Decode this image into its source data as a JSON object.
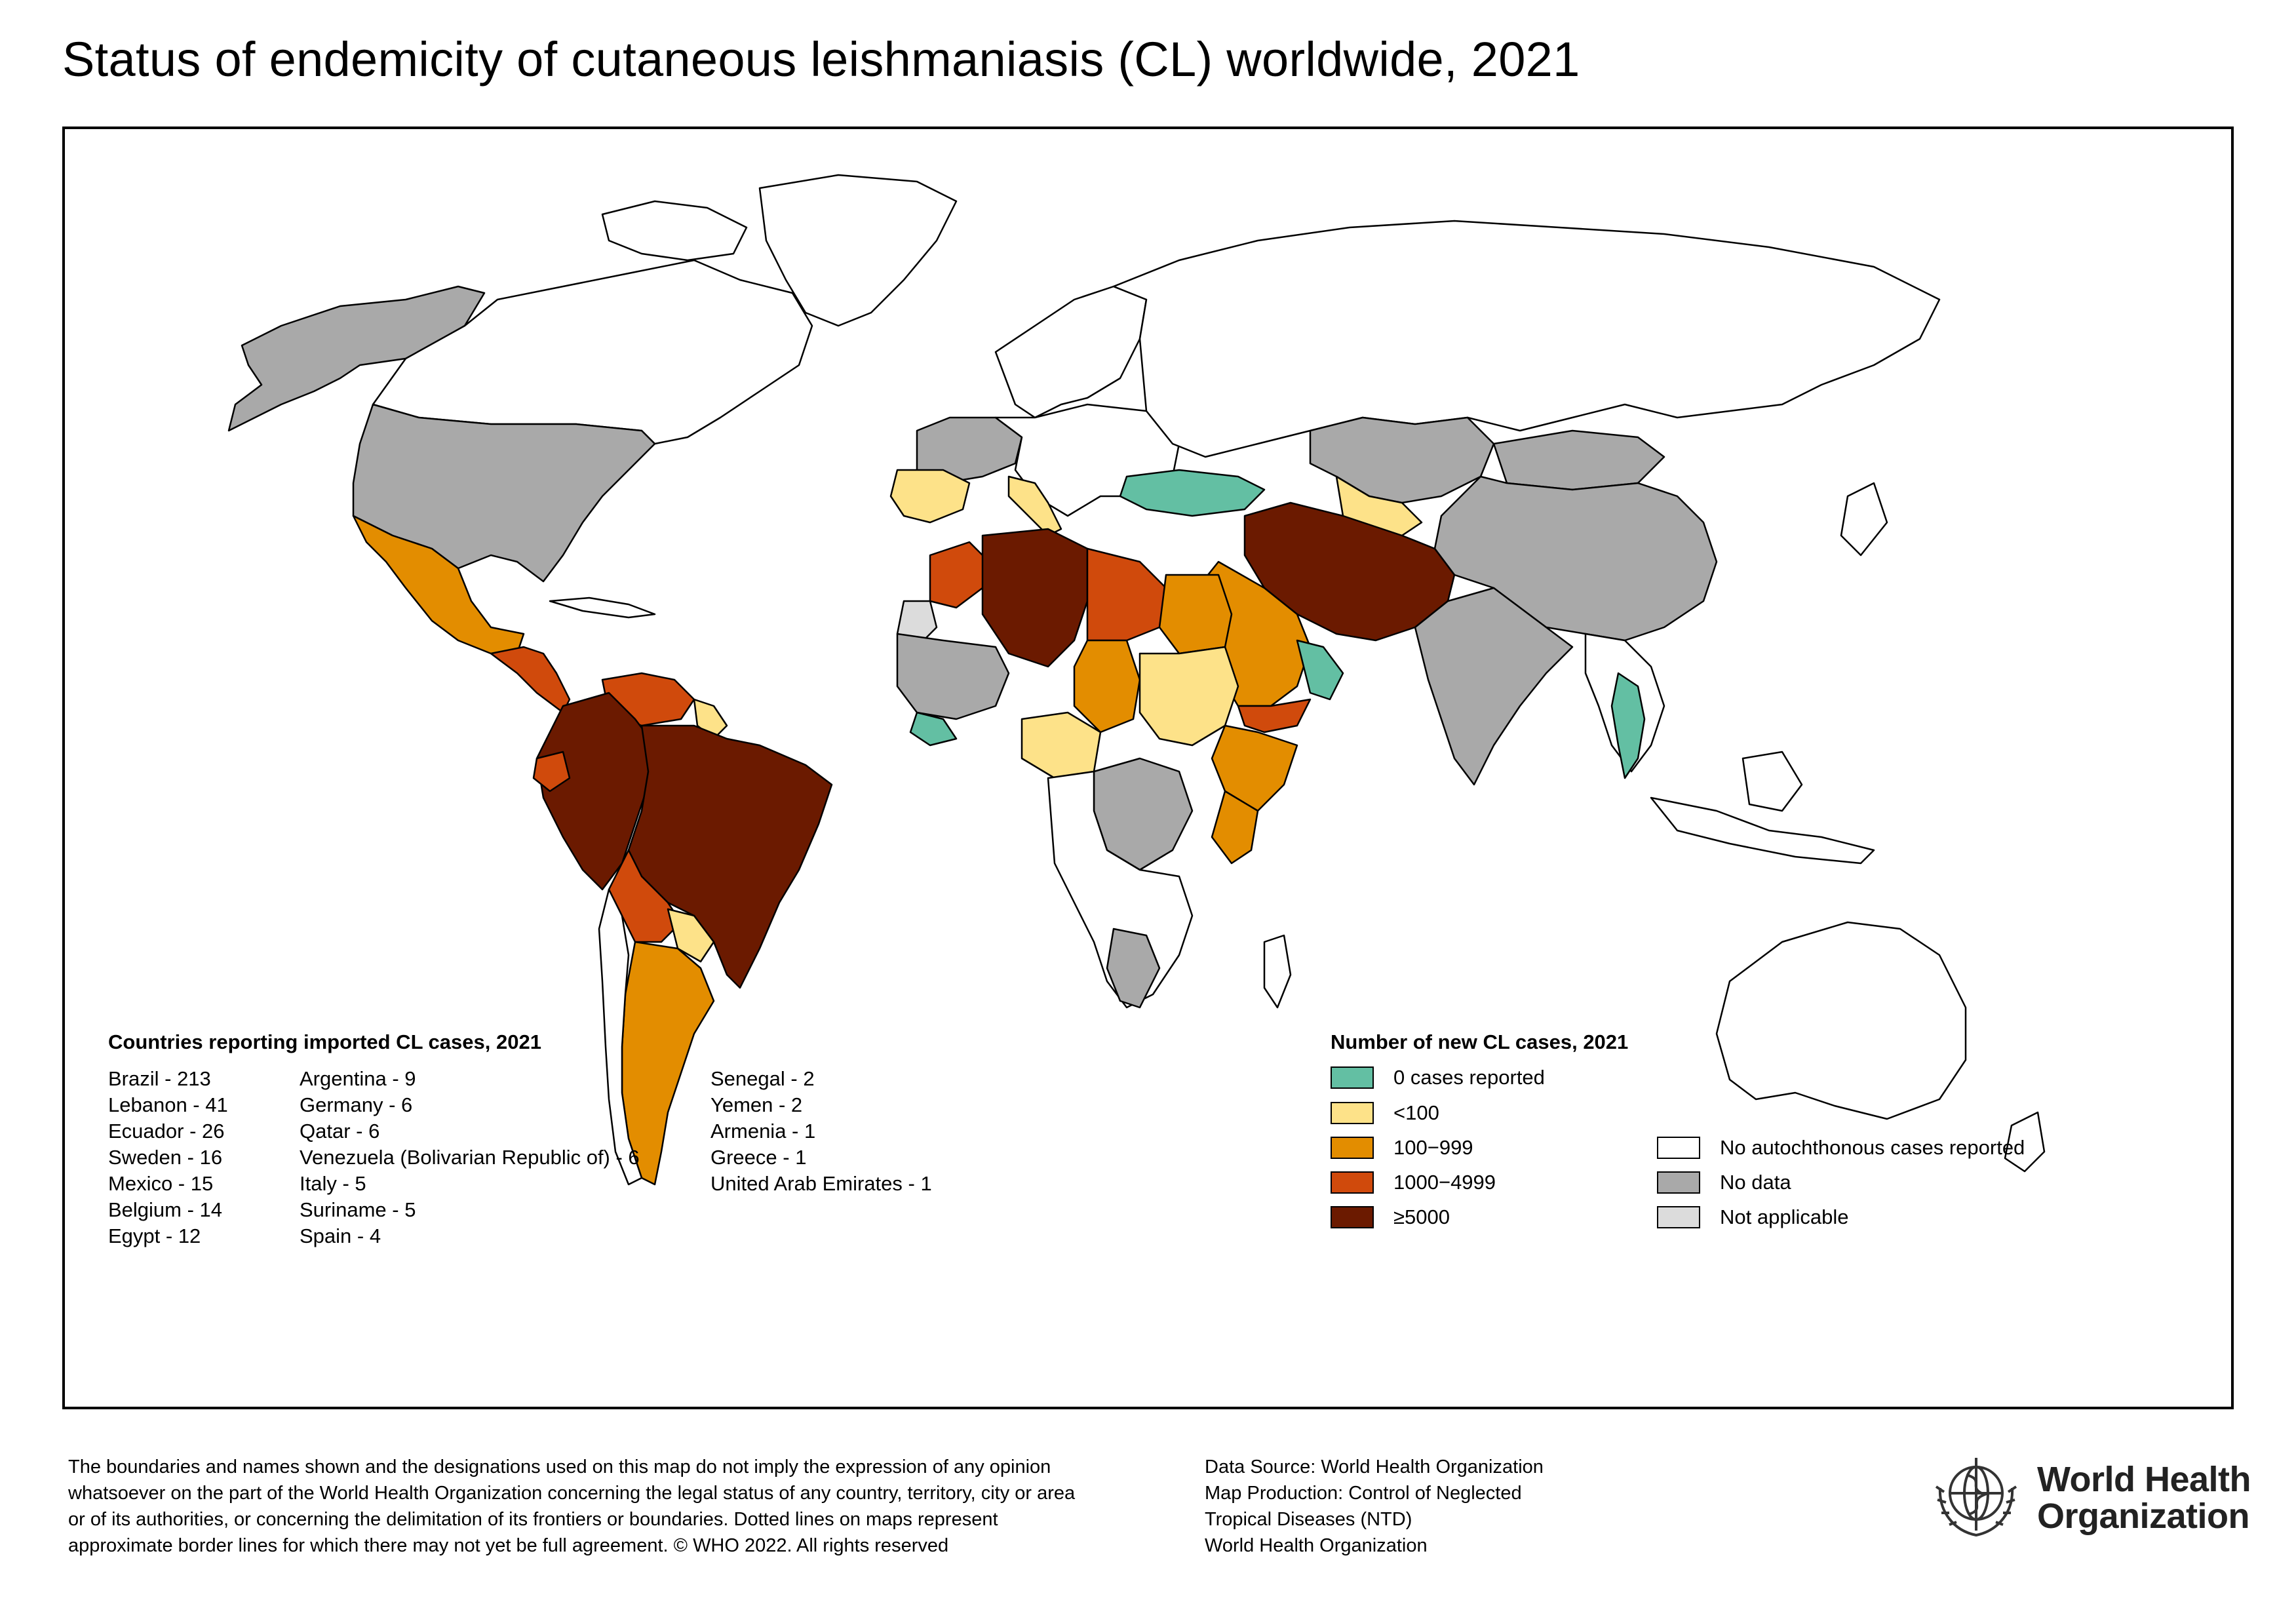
{
  "title": "Status of endemicity of cutaneous leishmaniasis (CL) worldwide, 2021",
  "colors": {
    "zero": "#63bfa3",
    "lt100": "#fde289",
    "c100_999": "#e38d00",
    "c1000_4999": "#d04a0c",
    "c5000": "#6b1a00",
    "no_auto": "#ffffff",
    "no_data": "#a9a9a9",
    "not_applicable": "#dcdcdc",
    "border": "#000000"
  },
  "imported": {
    "title": "Countries reporting imported CL cases, 2021",
    "col1": [
      "Brazil - 213",
      "Lebanon - 41",
      "Ecuador - 26",
      "Sweden - 16",
      "Mexico - 15",
      "Belgium - 14",
      "Egypt - 12"
    ],
    "col2": [
      "Argentina - 9",
      "Germany - 6",
      "Qatar - 6",
      "Venezuela (Bolivarian Republic of) - 6",
      "Italy - 5",
      "Suriname - 5",
      "Spain - 4"
    ],
    "col3": [
      "Senegal - 2",
      "Yemen - 2",
      "Armenia - 1",
      "Greece - 1",
      "United Arab Emirates - 1"
    ]
  },
  "legend": {
    "title": "Number of new CL cases, 2021",
    "items": [
      {
        "label": "0 cases reported",
        "color_key": "zero"
      },
      {
        "label": "<100",
        "color_key": "lt100"
      },
      {
        "label": "100−999",
        "color_key": "c100_999"
      },
      {
        "label": "1000−4999",
        "color_key": "c1000_4999"
      },
      {
        "label": "≥5000",
        "color_key": "c5000"
      },
      {
        "label": "No autochthonous cases reported",
        "color_key": "no_auto"
      },
      {
        "label": "No data",
        "color_key": "no_data"
      },
      {
        "label": "Not applicable",
        "color_key": "not_applicable"
      }
    ]
  },
  "map_regions": [
    {
      "name": "Canada",
      "category": "no_auto"
    },
    {
      "name": "Alaska",
      "category": "no_data"
    },
    {
      "name": "United States of America",
      "category": "no_data"
    },
    {
      "name": "Greenland",
      "category": "no_auto"
    },
    {
      "name": "Mexico",
      "category": "c100_999"
    },
    {
      "name": "Central America",
      "category": "c1000_4999"
    },
    {
      "name": "Colombia / Peru",
      "category": "c5000"
    },
    {
      "name": "Venezuela",
      "category": "c1000_4999"
    },
    {
      "name": "Brazil",
      "category": "c5000"
    },
    {
      "name": "Bolivia",
      "category": "c1000_4999"
    },
    {
      "name": "Paraguay",
      "category": "lt100"
    },
    {
      "name": "Argentina",
      "category": "c100_999"
    },
    {
      "name": "Chile",
      "category": "no_auto"
    },
    {
      "name": "Algeria",
      "category": "c5000"
    },
    {
      "name": "Morocco",
      "category": "c1000_4999"
    },
    {
      "name": "Libya",
      "category": "c1000_4999"
    },
    {
      "name": "Egypt",
      "category": "c100_999"
    },
    {
      "name": "Sudan",
      "category": "lt100"
    },
    {
      "name": "Ethiopia",
      "category": "c100_999"
    },
    {
      "name": "Saudi Arabia",
      "category": "c100_999"
    },
    {
      "name": "Iran / Afghanistan / Pakistan",
      "category": "c5000"
    },
    {
      "name": "Russian Federation",
      "category": "no_auto"
    },
    {
      "name": "China",
      "category": "no_data"
    },
    {
      "name": "India",
      "category": "no_data"
    },
    {
      "name": "Australia",
      "category": "no_auto"
    }
  ],
  "disclaimer": "The boundaries and names shown and the designations used on this map do not imply the expression of any opinion whatsoever on the part of the World Health Organization concerning the legal status of any country, territory, city or area or of its authorities, or concerning the delimitation of its frontiers or boundaries. Dotted lines on maps represent approximate border lines for which there may not yet be full agreement. © WHO 2022. All rights reserved",
  "data_source": [
    "Data Source: World Health Organization",
    "Map Production: Control of Neglected",
    "Tropical Diseases (NTD)",
    "World Health Organization"
  ],
  "logo": {
    "line1": "World Health",
    "line2": "Organization"
  }
}
